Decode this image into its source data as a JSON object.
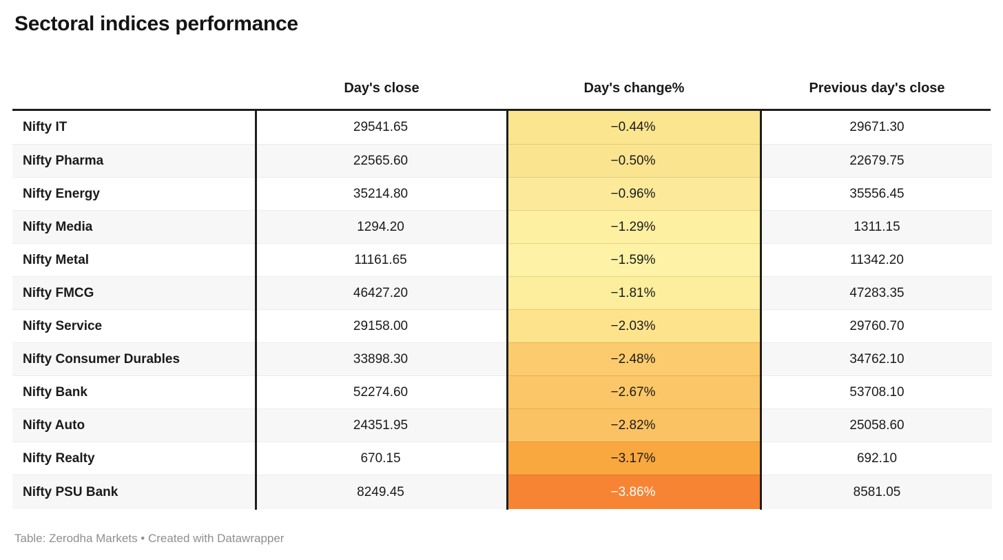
{
  "title": "Sectoral indices performance",
  "footer": "Table: Zerodha Markets • Created with Datawrapper",
  "colors": {
    "row_base": "#ffffff",
    "row_alt": "#f7f7f7",
    "border_dark": "#1d1d1d",
    "text": "#1a1a1a",
    "footer_text": "#8e8e8e",
    "heatmap_min_color": "#fdf3a6",
    "heatmap_max_color": "#f68433"
  },
  "chart_data": {
    "type": "table",
    "title": "Sectoral indices performance",
    "columns": [
      "",
      "Day's close",
      "Day's change%",
      "Previous day's close"
    ],
    "heatmap_column": "Day's change%",
    "rows": [
      {
        "index": "Nifty IT",
        "days_close": "29541.65",
        "days_change_pct": "−0.44%",
        "prev_close": "29671.30",
        "change_bg": "#fbe58f",
        "change_fg": "#1a1a1a"
      },
      {
        "index": "Nifty Pharma",
        "days_close": "22565.60",
        "days_change_pct": "−0.50%",
        "prev_close": "22679.75",
        "change_bg": "#fbe490",
        "change_fg": "#1a1a1a"
      },
      {
        "index": "Nifty Energy",
        "days_close": "35214.80",
        "days_change_pct": "−0.96%",
        "prev_close": "35556.45",
        "change_bg": "#fcea9a",
        "change_fg": "#1a1a1a"
      },
      {
        "index": "Nifty Media",
        "days_close": "1294.20",
        "days_change_pct": "−1.29%",
        "prev_close": "1311.15",
        "change_bg": "#fdf0a1",
        "change_fg": "#1a1a1a"
      },
      {
        "index": "Nifty Metal",
        "days_close": "11161.65",
        "days_change_pct": "−1.59%",
        "prev_close": "11342.20",
        "change_bg": "#fdf2a5",
        "change_fg": "#1a1a1a"
      },
      {
        "index": "Nifty FMCG",
        "days_close": "46427.20",
        "days_change_pct": "−1.81%",
        "prev_close": "47283.35",
        "change_bg": "#fcee9d",
        "change_fg": "#1a1a1a"
      },
      {
        "index": "Nifty Service",
        "days_close": "29158.00",
        "days_change_pct": "−2.03%",
        "prev_close": "29760.70",
        "change_bg": "#fde48c",
        "change_fg": "#1a1a1a"
      },
      {
        "index": "Nifty Consumer Durables",
        "days_close": "33898.30",
        "days_change_pct": "−2.48%",
        "prev_close": "34762.10",
        "change_bg": "#fbcb6e",
        "change_fg": "#1a1a1a"
      },
      {
        "index": "Nifty Bank",
        "days_close": "52274.60",
        "days_change_pct": "−2.67%",
        "prev_close": "53708.10",
        "change_bg": "#fbc667",
        "change_fg": "#1a1a1a"
      },
      {
        "index": "Nifty Auto",
        "days_close": "24351.95",
        "days_change_pct": "−2.82%",
        "prev_close": "25058.60",
        "change_bg": "#fbc263",
        "change_fg": "#1a1a1a"
      },
      {
        "index": "Nifty Realty",
        "days_close": "670.15",
        "days_change_pct": "−3.17%",
        "prev_close": "692.10",
        "change_bg": "#f9a73f",
        "change_fg": "#1a1a1a"
      },
      {
        "index": "Nifty PSU Bank",
        "days_close": "8249.45",
        "days_change_pct": "−3.86%",
        "prev_close": "8581.05",
        "change_bg": "#f68433",
        "change_fg": "#ffffff"
      }
    ]
  }
}
